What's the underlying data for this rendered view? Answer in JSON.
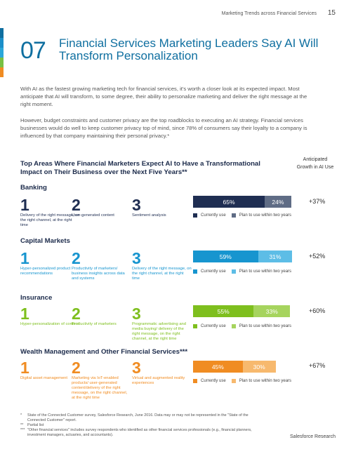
{
  "header": {
    "running_head": "Marketing Trends across Financial Services",
    "page_number": "15"
  },
  "colors": {
    "accent_strip": [
      "#0f6fa0",
      "#1b8fc9",
      "#2aa7d9",
      "#78c043",
      "#f08c22"
    ]
  },
  "chapter": {
    "number": "07",
    "title": "Financial Services Marketing Leaders Say AI Will Transform Personalization"
  },
  "intro": {
    "p1": "With AI as the fastest growing marketing tech for financial services, it's worth a closer look at its expected impact. Most anticipate that AI will transform, to some degree, their ability to personalize marketing and deliver the right message at the right moment.",
    "p2": "However, budget constraints and customer privacy are the top roadblocks to executing an AI strategy. Financial services businesses would do well to keep customer privacy top of mind, since 78% of consumers say their loyalty to a company is influenced by that company maintaining their personal privacy.*"
  },
  "figure": {
    "title": "Top Areas Where Financial Marketers Expect AI to Have a Transformational Impact on Their Business over the Next Five Years**",
    "growth_header": "Anticipated Growth in AI Use",
    "legend_current": "Currently use",
    "legend_plan": "Plan to use within two years",
    "sections": [
      {
        "title": "Banking",
        "color_dark": "#1f2e52",
        "color_light": "#5f6c85",
        "rank_color": "#1f2e52",
        "items": [
          {
            "num": "1",
            "desc": "Delivery of the right message, on the right channel, at the right time"
          },
          {
            "num": "2",
            "desc": "User-generated content"
          },
          {
            "num": "3",
            "desc": "Sentiment analysis"
          }
        ],
        "current_label": "65%",
        "plan_label": "24%",
        "current": 65,
        "plan": 24,
        "growth": "+37%"
      },
      {
        "title": "Capital Markets",
        "color_dark": "#1795cf",
        "color_light": "#5dbde6",
        "rank_color": "#1795cf",
        "items": [
          {
            "num": "1",
            "desc": "Hyper-personalized product recommendations"
          },
          {
            "num": "2",
            "desc": "Productivity of marketers/ business insights across data and systems"
          },
          {
            "num": "3",
            "desc": "Delivery of the right message, on the right channel, at the right time"
          }
        ],
        "current_label": "59%",
        "plan_label": "31%",
        "current": 59,
        "plan": 31,
        "growth": "+52%"
      },
      {
        "title": "Insurance",
        "color_dark": "#7ebf1e",
        "color_light": "#a6d45e",
        "rank_color": "#7ebf1e",
        "items": [
          {
            "num": "1",
            "desc": "Hyper-personalization of content"
          },
          {
            "num": "2",
            "desc": "Productivity of marketers"
          },
          {
            "num": "3",
            "desc": "Programmatic advertising and media buying/ delivery of the right message, on the right channel, at the right time"
          }
        ],
        "current_label": "55%",
        "plan_label": "33%",
        "current": 55,
        "plan": 33,
        "growth": "+60%"
      },
      {
        "title": "Wealth Management and Other Financial Services***",
        "color_dark": "#f08c22",
        "color_light": "#f7b96e",
        "rank_color": "#f08c22",
        "items": [
          {
            "num": "1",
            "desc": "Digital asset management"
          },
          {
            "num": "2",
            "desc": "Marketing via IoT-enabled products/ user-generated content/delivery of the right message, on the right channel, at the right time"
          },
          {
            "num": "3",
            "desc": "Virtual and augmented reality experiences"
          }
        ],
        "current_label": "45%",
        "plan_label": "30%",
        "current": 45,
        "plan": 30,
        "growth": "+67%"
      }
    ]
  },
  "footnotes": [
    {
      "mark": "*",
      "text": "State of the Connected Customer survey, Salesforce Research, June 2016. Data may or may not be represented in the \"State of the Connected Customer\" report."
    },
    {
      "mark": "**",
      "text": "Partial list"
    },
    {
      "mark": "***",
      "text": "\"Other financial services\" includes survey respondents who identified as other financial services professionals (e.g., financial planners, investment managers, actuaries, and accountants)."
    }
  ],
  "footer": {
    "label": "Salesforce Research"
  }
}
